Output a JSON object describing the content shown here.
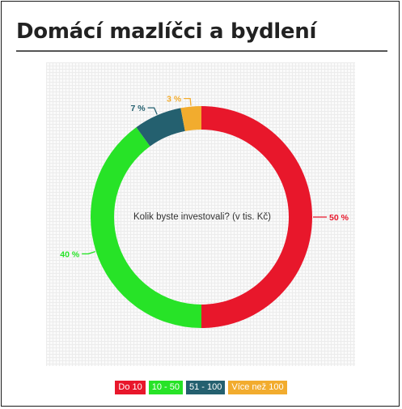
{
  "page": {
    "title": "Domácí mazlíčci a bydlení"
  },
  "chart_data": {
    "type": "pie",
    "donut": true,
    "center_label": "Kolik byste investovali? (v tis. Kč)",
    "categories": [
      "Do 10",
      "10 - 50",
      "51 - 100",
      "Více než 100"
    ],
    "values": [
      50,
      40,
      7,
      3
    ],
    "value_labels": [
      "50 %",
      "40 %",
      "7 %",
      "3 %"
    ],
    "colors": [
      "#e8172b",
      "#27e327",
      "#24606f",
      "#f2ac2e"
    ],
    "legend_placement": "bottom-center",
    "grid": false
  }
}
